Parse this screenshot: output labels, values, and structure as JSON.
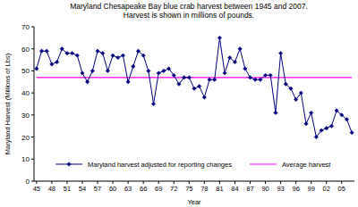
{
  "chart_data": {
    "type": "line",
    "title": "Maryland Chesapeake Bay blue crab harvest between 1945 and 2007.",
    "subtitle": "Harvest is shown in millions of pounds.",
    "y_label": "Maryland Harvest (Millions of Lbs)",
    "x_label": "Year",
    "categories": [
      "45",
      null,
      null,
      "48",
      null,
      null,
      "51",
      null,
      null,
      "54",
      null,
      null,
      "57",
      null,
      null,
      "60",
      null,
      null,
      "63",
      null,
      null,
      "66",
      null,
      null,
      "69",
      null,
      null,
      "72",
      null,
      null,
      "75",
      null,
      null,
      "78",
      null,
      null,
      "81",
      null,
      null,
      "84",
      null,
      null,
      "87",
      null,
      null,
      "90",
      null,
      null,
      "93",
      null,
      null,
      "96",
      null,
      null,
      "99",
      null,
      null,
      "02",
      null,
      null,
      "05",
      null,
      null
    ],
    "series": [
      {
        "name": "Maryland harvest adjusted for reporting changes",
        "color": "#000080",
        "marker": "diamond",
        "values": [
          51,
          59,
          59,
          53,
          54,
          60,
          58,
          58,
          57,
          49,
          45,
          50,
          59,
          58,
          50,
          57,
          56,
          57,
          45,
          52,
          59,
          57,
          50,
          35,
          49,
          50,
          51,
          48,
          44,
          47,
          47,
          42,
          43,
          38,
          46,
          46,
          65,
          49,
          56,
          54,
          60,
          51,
          47,
          46,
          46,
          48,
          48,
          31,
          58,
          44,
          42,
          37,
          40,
          26,
          31,
          20,
          23,
          24,
          25,
          32,
          30,
          28,
          22
        ]
      },
      {
        "name": "Average harvest",
        "color": "#ff00ff",
        "marker": "none",
        "values": [
          47,
          47,
          47,
          47,
          47,
          47,
          47,
          47,
          47,
          47,
          47,
          47,
          47,
          47,
          47,
          47,
          47,
          47,
          47,
          47,
          47,
          47,
          47,
          47,
          47,
          47,
          47,
          47,
          47,
          47,
          47,
          47,
          47,
          47,
          47,
          47,
          47,
          47,
          47,
          47,
          47,
          47,
          47,
          47,
          47,
          47,
          47,
          47,
          47,
          47,
          47,
          47,
          47,
          47,
          47,
          47,
          47,
          47,
          47,
          47,
          47,
          47,
          47
        ]
      }
    ],
    "ylim": [
      0,
      70
    ],
    "yticks": [
      0,
      10,
      20,
      30,
      40,
      50,
      60,
      70
    ],
    "grid": false,
    "legend": "bottom"
  }
}
